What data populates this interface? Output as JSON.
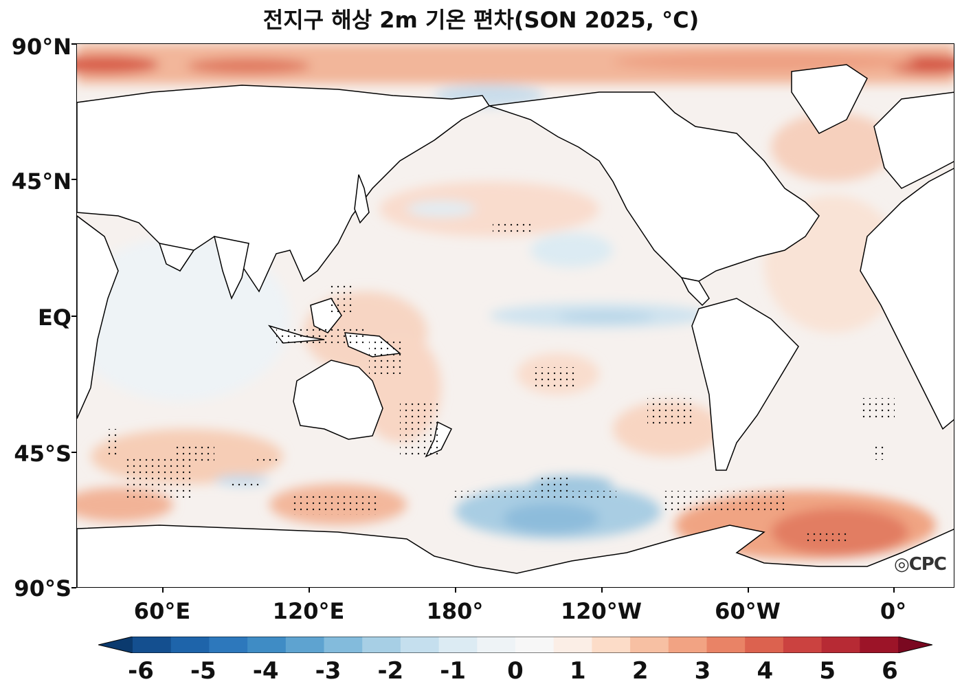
{
  "title": "전지구 해상 2m 기온 편차(SON 2025, °C)",
  "y_axis": {
    "labels": [
      "90°N",
      "45°N",
      "EQ",
      "45°S",
      "90°S"
    ]
  },
  "x_axis": {
    "labels": [
      "60°E",
      "120°E",
      "180°",
      "120°W",
      "60°W",
      "0°"
    ]
  },
  "colorbar": {
    "labels": [
      "-6",
      "-5",
      "-4",
      "-3",
      "-2",
      "-1",
      "0",
      "1",
      "2",
      "3",
      "4",
      "5",
      "6"
    ],
    "colors": [
      "#0b3a6e",
      "#144f8f",
      "#1e64aa",
      "#2d78bc",
      "#3f8cc5",
      "#5ea3d0",
      "#83bbdc",
      "#a7cfe5",
      "#c5dfee",
      "#dcebf3",
      "#eef3f6",
      "#f7f7f7",
      "#fbeee6",
      "#fcdcc8",
      "#f7c0a3",
      "#f2a383",
      "#e98366",
      "#dc624f",
      "#cb4240",
      "#b72a34",
      "#9c1428",
      "#7a0820"
    ]
  },
  "logo": "CPC"
}
